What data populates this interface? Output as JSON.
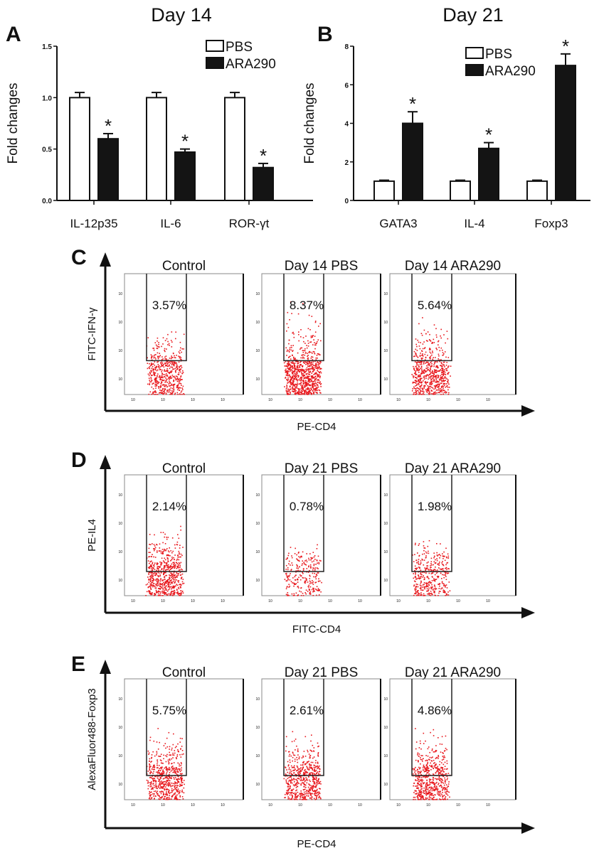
{
  "colors": {
    "pbs_fill": "#ffffff",
    "ara290_fill": "#141414",
    "events": "#e8171c",
    "axis": "#111111"
  },
  "chart_data": [
    {
      "type": "bar",
      "panel": "A",
      "title": "Day 14",
      "ylabel": "Fold changes",
      "ylim": [
        0,
        1.5
      ],
      "yticks": [
        "0.0",
        "0.5",
        "1.0",
        "1.5"
      ],
      "categories": [
        "IL-12p35",
        "IL-6",
        "ROR-γt"
      ],
      "series": [
        {
          "name": "PBS",
          "values": [
            1.0,
            1.0,
            1.0
          ],
          "errors": [
            0.05,
            0.05,
            0.05
          ]
        },
        {
          "name": "ARA290",
          "values": [
            0.6,
            0.47,
            0.32
          ],
          "errors": [
            0.05,
            0.03,
            0.04
          ]
        }
      ],
      "significance": [
        "*",
        "*",
        "*"
      ],
      "legend": "top-right",
      "grid": false
    },
    {
      "type": "bar",
      "panel": "B",
      "title": "Day 21",
      "ylabel": "Fold changes",
      "ylim": [
        0,
        8
      ],
      "yticks": [
        "0",
        "2",
        "4",
        "6",
        "8"
      ],
      "categories": [
        "GATA3",
        "IL-4",
        "Foxp3"
      ],
      "series": [
        {
          "name": "PBS",
          "values": [
            1.0,
            1.0,
            1.0
          ],
          "errors": [
            0.05,
            0.05,
            0.05
          ]
        },
        {
          "name": "ARA290",
          "values": [
            4.0,
            2.7,
            7.0
          ],
          "errors": [
            0.6,
            0.3,
            0.6
          ]
        }
      ],
      "significance": [
        "*",
        "*",
        "*"
      ],
      "legend": "top-right",
      "grid": false
    },
    {
      "type": "scatter",
      "panel": "C",
      "xlabel": "PE-CD4",
      "ylabel": "FITC-IFN-γ",
      "plots": [
        {
          "title": "Control",
          "gate_percent": "3.57%",
          "density": 0.8
        },
        {
          "title": "Day 14 PBS",
          "gate_percent": "8.37%",
          "density": 1.3
        },
        {
          "title": "Day 14 ARA290",
          "gate_percent": "5.64%",
          "density": 1.0
        }
      ]
    },
    {
      "type": "scatter",
      "panel": "D",
      "xlabel": "FITC-CD4",
      "ylabel": "PE-IL4",
      "plots": [
        {
          "title": "Control",
          "gate_percent": "2.14%",
          "density": 1.0
        },
        {
          "title": "Day 21 PBS",
          "gate_percent": "0.78%",
          "density": 0.4
        },
        {
          "title": "Day 21 ARA290",
          "gate_percent": "1.98%",
          "density": 0.6
        }
      ]
    },
    {
      "type": "scatter",
      "panel": "E",
      "xlabel": "PE-CD4",
      "ylabel": "AlexaFluor488-Foxp3",
      "plots": [
        {
          "title": "Control",
          "gate_percent": "5.75%",
          "density": 0.9
        },
        {
          "title": "Day 21 PBS",
          "gate_percent": "2.61%",
          "density": 0.9
        },
        {
          "title": "Day 21 ARA290",
          "gate_percent": "4.86%",
          "density": 0.9
        }
      ]
    }
  ]
}
